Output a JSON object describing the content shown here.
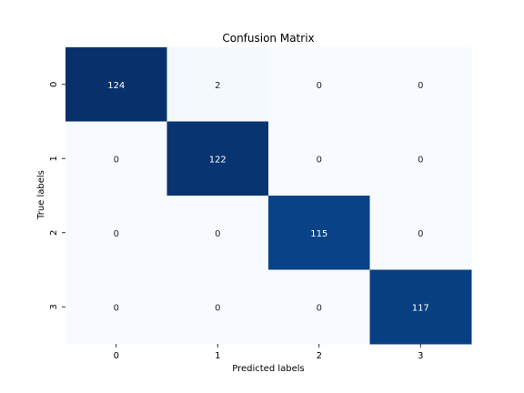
{
  "chart_data": {
    "type": "heatmap",
    "title": "Confusion Matrix",
    "xlabel": "Predicted labels",
    "ylabel": "True labels",
    "x_categories": [
      "0",
      "1",
      "2",
      "3"
    ],
    "y_categories": [
      "0",
      "1",
      "2",
      "3"
    ],
    "values": [
      [
        124,
        2,
        0,
        0
      ],
      [
        0,
        122,
        0,
        0
      ],
      [
        0,
        0,
        115,
        0
      ],
      [
        0,
        0,
        0,
        117
      ]
    ],
    "colormap": "Blues",
    "color_low": "#f7fbff",
    "color_high": "#08306b",
    "colorbar": false,
    "grid": false
  }
}
